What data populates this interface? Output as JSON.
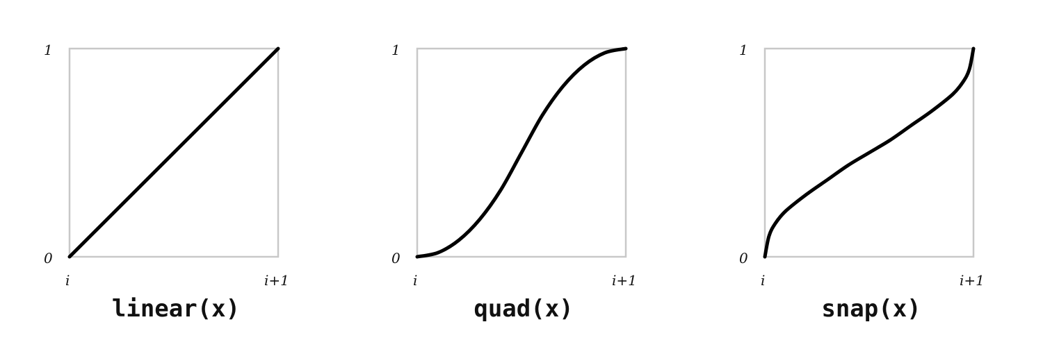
{
  "chart_data": [
    {
      "type": "line",
      "title": "linear(x)",
      "x_tick_labels": [
        "i",
        "i+1"
      ],
      "y_tick_labels": [
        "0",
        "1"
      ],
      "xlim": [
        0,
        1
      ],
      "ylim": [
        0,
        1
      ],
      "grid": false,
      "series": [
        {
          "x": [
            0,
            0.25,
            0.5,
            0.75,
            1
          ],
          "y": [
            0,
            0.25,
            0.5,
            0.75,
            1
          ]
        }
      ]
    },
    {
      "type": "line",
      "title": "quad(x)",
      "x_tick_labels": [
        "i",
        "i+1"
      ],
      "y_tick_labels": [
        "0",
        "1"
      ],
      "xlim": [
        0,
        1
      ],
      "ylim": [
        0,
        1
      ],
      "grid": false,
      "series": [
        {
          "x": [
            0,
            0.1,
            0.2,
            0.3,
            0.4,
            0.5,
            0.6,
            0.7,
            0.8,
            0.9,
            1
          ],
          "y": [
            0,
            0.02,
            0.08,
            0.18,
            0.32,
            0.5,
            0.68,
            0.82,
            0.92,
            0.98,
            1
          ]
        }
      ]
    },
    {
      "type": "line",
      "title": "snap(x)",
      "x_tick_labels": [
        "i",
        "i+1"
      ],
      "y_tick_labels": [
        "0",
        "1"
      ],
      "xlim": [
        0,
        1
      ],
      "ylim": [
        0,
        1
      ],
      "grid": false,
      "series": [
        {
          "x": [
            0,
            0.02,
            0.05,
            0.1,
            0.2,
            0.3,
            0.4,
            0.5,
            0.6,
            0.7,
            0.8,
            0.9,
            0.95,
            0.98,
            1
          ],
          "y": [
            0,
            0.1,
            0.16,
            0.22,
            0.3,
            0.37,
            0.44,
            0.5,
            0.56,
            0.63,
            0.7,
            0.78,
            0.84,
            0.9,
            1
          ]
        }
      ]
    }
  ],
  "colors": {
    "curve": "#000000",
    "frame": "#c8c8c8",
    "text": "#111111"
  }
}
